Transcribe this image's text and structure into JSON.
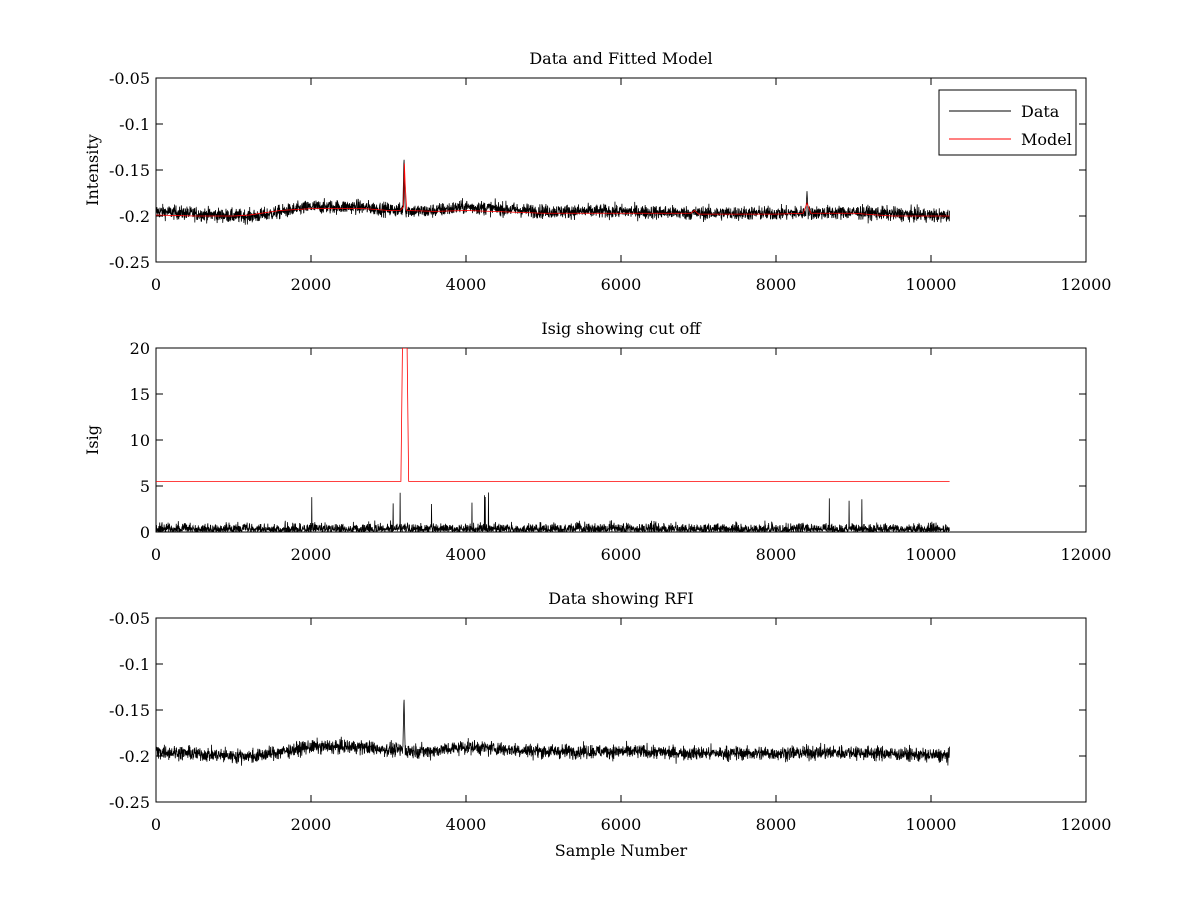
{
  "figure": {
    "background": "#ffffff"
  },
  "chart_data": [
    {
      "type": "line",
      "title": "Data and Fitted Model",
      "xlabel": "",
      "ylabel": "Intensity",
      "xlim": [
        0,
        12000
      ],
      "ylim": [
        -0.25,
        -0.05
      ],
      "y_reversed": true,
      "x_ticks": [
        0,
        2000,
        4000,
        6000,
        8000,
        10000,
        12000
      ],
      "y_ticks": [
        -0.05,
        -0.1,
        -0.15,
        -0.2,
        -0.25
      ],
      "x_tick_labels": [
        "0",
        "2000",
        "4000",
        "6000",
        "8000",
        "10000",
        "12000"
      ],
      "y_tick_labels": [
        "-0.05",
        "-0.1",
        "-0.15",
        "-0.2",
        "-0.25"
      ],
      "legend": {
        "placement": "top-right",
        "entries": [
          "Data",
          "Model"
        ]
      },
      "series": [
        {
          "name": "Data",
          "color": "#000000",
          "kind": "noise",
          "x_range": [
            0,
            10240
          ],
          "baseline": [
            [
              0,
              -0.195
            ],
            [
              1000,
              -0.2
            ],
            [
              1300,
              -0.2
            ],
            [
              2000,
              -0.19
            ],
            [
              2600,
              -0.19
            ],
            [
              3000,
              -0.193
            ],
            [
              3500,
              -0.195
            ],
            [
              4000,
              -0.19
            ],
            [
              5000,
              -0.195
            ],
            [
              6000,
              -0.195
            ],
            [
              7000,
              -0.197
            ],
            [
              8000,
              -0.197
            ],
            [
              9000,
              -0.196
            ],
            [
              10240,
              -0.2
            ]
          ],
          "noise_amplitude": 0.015,
          "min": -0.238,
          "max": -0.17,
          "spikes": [
            {
              "x": 3200,
              "y": -0.135
            },
            {
              "x": 8400,
              "y": -0.173
            }
          ]
        },
        {
          "name": "Model",
          "color": "#ff0000",
          "kind": "line",
          "points": [
            [
              0,
              -0.199
            ],
            [
              500,
              -0.2
            ],
            [
              1000,
              -0.2
            ],
            [
              1200,
              -0.199
            ],
            [
              1600,
              -0.194
            ],
            [
              2000,
              -0.192
            ],
            [
              2700,
              -0.192
            ],
            [
              3000,
              -0.194
            ],
            [
              3150,
              -0.194
            ],
            [
              3195,
              -0.19
            ],
            [
              3205,
              -0.143
            ],
            [
              3215,
              -0.165
            ],
            [
              3235,
              -0.194
            ],
            [
              3600,
              -0.195
            ],
            [
              4000,
              -0.194
            ],
            [
              5000,
              -0.197
            ],
            [
              6000,
              -0.197
            ],
            [
              6900,
              -0.197
            ],
            [
              6950,
              -0.194
            ],
            [
              7000,
              -0.198
            ],
            [
              8000,
              -0.198
            ],
            [
              8350,
              -0.197
            ],
            [
              8400,
              -0.186
            ],
            [
              8450,
              -0.197
            ],
            [
              9000,
              -0.197
            ],
            [
              9500,
              -0.2
            ],
            [
              10240,
              -0.2
            ]
          ]
        }
      ]
    },
    {
      "type": "line",
      "title": "Isig showing cut off",
      "xlabel": "",
      "ylabel": "Isig",
      "xlim": [
        0,
        12000
      ],
      "ylim": [
        0,
        20
      ],
      "x_ticks": [
        0,
        2000,
        4000,
        6000,
        8000,
        10000,
        12000
      ],
      "y_ticks": [
        0,
        5,
        10,
        15,
        20
      ],
      "x_tick_labels": [
        "0",
        "2000",
        "4000",
        "6000",
        "8000",
        "10000",
        "12000"
      ],
      "y_tick_labels": [
        "0",
        "5",
        "10",
        "15",
        "20"
      ],
      "series": [
        {
          "color": "#000000",
          "kind": "noise_abs",
          "x_range": [
            0,
            10240
          ],
          "noise_amplitude": 1.6,
          "max": 4.3
        },
        {
          "color": "#ff0000",
          "kind": "line",
          "points": [
            [
              0,
              5.5
            ],
            [
              3160,
              5.5
            ],
            [
              3180,
              20
            ],
            [
              3240,
              20
            ],
            [
              3260,
              5.5
            ],
            [
              10240,
              5.5
            ]
          ]
        }
      ]
    },
    {
      "type": "line",
      "title": "Data showing RFI",
      "xlabel": "Sample Number",
      "ylabel": "",
      "xlim": [
        0,
        12000
      ],
      "ylim": [
        -0.25,
        -0.05
      ],
      "y_reversed": true,
      "x_ticks": [
        0,
        2000,
        4000,
        6000,
        8000,
        10000,
        12000
      ],
      "y_ticks": [
        -0.05,
        -0.1,
        -0.15,
        -0.2,
        -0.25
      ],
      "x_tick_labels": [
        "0",
        "2000",
        "4000",
        "6000",
        "8000",
        "10000",
        "12000"
      ],
      "y_tick_labels": [
        "-0.05",
        "-0.1",
        "-0.15",
        "-0.2",
        "-0.25"
      ],
      "series": [
        {
          "color": "#000000",
          "kind": "noise",
          "x_range": [
            0,
            10240
          ],
          "baseline": [
            [
              0,
              -0.195
            ],
            [
              1000,
              -0.2
            ],
            [
              1300,
              -0.2
            ],
            [
              2000,
              -0.19
            ],
            [
              2600,
              -0.19
            ],
            [
              3000,
              -0.193
            ],
            [
              3500,
              -0.195
            ],
            [
              4000,
              -0.19
            ],
            [
              5000,
              -0.195
            ],
            [
              6000,
              -0.195
            ],
            [
              7000,
              -0.197
            ],
            [
              8000,
              -0.197
            ],
            [
              9000,
              -0.196
            ],
            [
              10240,
              -0.2
            ]
          ],
          "noise_amplitude": 0.015,
          "min": -0.238,
          "max": -0.17,
          "spikes": [
            {
              "x": 3200,
              "y": -0.135
            }
          ]
        }
      ]
    }
  ]
}
